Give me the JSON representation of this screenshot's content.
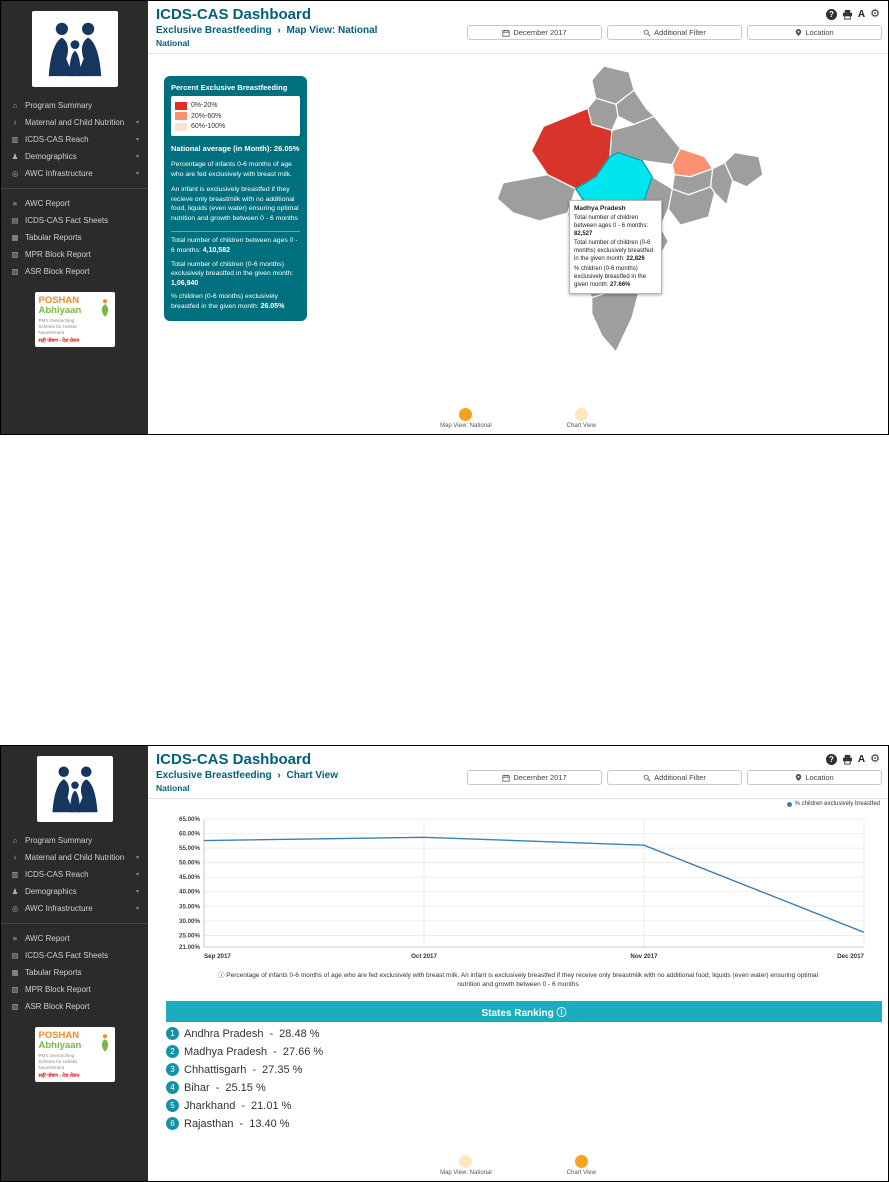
{
  "app": {
    "title": "ICDS-CAS Dashboard"
  },
  "icons": {
    "help": "?",
    "font": "A",
    "gear": "⚙",
    "info": "ⓘ"
  },
  "colors": {
    "teal_heading": "#00617a",
    "legend_box_bg": "#00707e",
    "ranking_header_bg": "#1badbe",
    "rank_circle_bg": "#1791a5",
    "toggle_active": "#f5a31c",
    "toggle_inactive": "#fbe7c0",
    "sidebar_bg": "#2b2b2b",
    "map_default_state": "#9e9e9e"
  },
  "sidebar": {
    "primary": [
      {
        "name": "sidebar-item-program-summary",
        "icon": "home-icon",
        "glyph": "⌂",
        "label": "Program Summary",
        "chevron": ""
      },
      {
        "name": "sidebar-item-maternal-child-nutrition",
        "icon": "mother-child-icon",
        "glyph": "♀",
        "label": "Maternal and Child Nutrition",
        "chevron": "▾"
      },
      {
        "name": "sidebar-item-icds-cas-reach",
        "icon": "reach-chart-icon",
        "glyph": "▥",
        "label": "ICDS-CAS Reach",
        "chevron": "▾"
      },
      {
        "name": "sidebar-item-demographics",
        "icon": "demographics-icon",
        "glyph": "♟",
        "label": "Demographics",
        "chevron": "▾"
      },
      {
        "name": "sidebar-item-awc-infrastructure",
        "icon": "infrastructure-icon",
        "glyph": "◎",
        "label": "AWC Infrastructure",
        "chevron": "▾"
      }
    ],
    "reports": [
      {
        "name": "sidebar-item-awc-report",
        "icon": "report-icon",
        "glyph": "≡",
        "label": "AWC Report",
        "chevron": ""
      },
      {
        "name": "sidebar-item-fact-sheets",
        "icon": "fact-sheet-icon",
        "glyph": "▤",
        "label": "ICDS-CAS Fact Sheets",
        "chevron": ""
      },
      {
        "name": "sidebar-item-tabular-reports",
        "icon": "table-icon",
        "glyph": "▦",
        "label": "Tabular Reports",
        "chevron": ""
      },
      {
        "name": "sidebar-item-mpr-block-report",
        "icon": "mpr-report-icon",
        "glyph": "▨",
        "label": "MPR Block Report",
        "chevron": ""
      },
      {
        "name": "sidebar-item-asr-block-report",
        "icon": "asr-report-icon",
        "glyph": "▧",
        "label": "ASR Block Report",
        "chevron": ""
      }
    ],
    "poshan": {
      "title1": "POSHAN",
      "title2": "Abhiyaan",
      "subtitle": "PM's Overarching Scheme for Holistic Nourishment",
      "tagline": "सही पोषण - देश रोशन"
    }
  },
  "filters": [
    {
      "label": "December 2017"
    },
    {
      "label": "Additional Filter"
    },
    {
      "label": "Location"
    }
  ],
  "map_view": {
    "breadcrumb": {
      "section": "Exclusive Breastfeeding",
      "separator": "›",
      "view": "Map View: National",
      "level": "National"
    },
    "legend_box": {
      "title": "Percent Exclusive Breastfeeding",
      "bins": [
        {
          "color": "#de2d26",
          "label": "0%-20%"
        },
        {
          "color": "#fc9272",
          "label": "20%-60%"
        },
        {
          "color": "#fee0d2",
          "label": "60%-100%"
        }
      ],
      "average": "National average (in Month): 26.05%",
      "desc1": "Percentage of infants 0-6 months of age who are fed exclusively with breast milk.",
      "desc2": "An infant is exclusively breastfed if they recieve only breastmilk with no additional food, liquids (even water) ensuring optimal nutrition and growth between 0 - 6 months",
      "stats": [
        {
          "label": "Total number of children between ages 0 - 6 months: ",
          "value": "4,10,582"
        },
        {
          "label": "Total number of children (0-6 months) exclusively breastfed in the given month: ",
          "value": "1,06,940"
        },
        {
          "label": "% children (0-6 months) exclusively breastfed in the given month: ",
          "value": "26.05%"
        }
      ]
    },
    "tooltip": {
      "title": "Madhya Pradesh",
      "rows": [
        {
          "label": "Total number of children between ages 0 - 6 months: ",
          "value": "82,527"
        },
        {
          "label": "Total number of children (0-6 months) exclusively breastfed in the given month: ",
          "value": "22,826"
        },
        {
          "label": "% children (0-6 months) exclusively breastfed in the given month: ",
          "value": "27.66%"
        }
      ]
    },
    "states": [
      {
        "id": "rajasthan",
        "color": "#d8342a"
      },
      {
        "id": "madhya-pradesh",
        "color": "#00e5ee"
      },
      {
        "id": "bihar",
        "color": "#fc9272"
      }
    ],
    "toggles": [
      {
        "label": "Map View: National",
        "active": true
      },
      {
        "label": "Chart View",
        "active": false
      }
    ]
  },
  "chart_view": {
    "breadcrumb": {
      "section": "Exclusive Breastfeeding",
      "separator": "›",
      "view": "Chart View",
      "level": "National"
    },
    "legend": "% children exclusively breastfed",
    "note": "Percentage of infants 0-6 months of age who are fed exclusively with breast milk. An infant is exclusively breastfed if they receive only breastmilk with no additional food, liquids (even water) ensuring optimal nutrition and growth between 0 - 6 months",
    "ranking": {
      "title": "States Ranking",
      "separator": "-",
      "items": [
        {
          "rank": "1",
          "state": "Andhra Pradesh",
          "value": "28.48 %"
        },
        {
          "rank": "2",
          "state": "Madhya Pradesh",
          "value": "27.66 %"
        },
        {
          "rank": "3",
          "state": "Chhattisgarh",
          "value": "27.35 %"
        },
        {
          "rank": "4",
          "state": "Bihar",
          "value": "25.15 %"
        },
        {
          "rank": "5",
          "state": "Jharkhand",
          "value": "21.01 %"
        },
        {
          "rank": "6",
          "state": "Rajasthan",
          "value": "13.40 %"
        }
      ]
    },
    "toggles": [
      {
        "label": "Map View: National",
        "active": false
      },
      {
        "label": "Chart View",
        "active": true
      }
    ]
  },
  "chart_data": {
    "type": "line",
    "title": "",
    "xlabel": "",
    "ylabel": "% children exclusively breastfed",
    "x": [
      "Sep 2017",
      "Oct 2017",
      "Nov 2017",
      "Dec 2017"
    ],
    "series": [
      {
        "name": "% children exclusively breastfed",
        "color": "#3c7fb5",
        "values": [
          57.6,
          58.7,
          56.0,
          26.05
        ]
      }
    ],
    "ylim": [
      21,
      65
    ],
    "yticks": [
      65,
      60,
      55,
      50,
      45,
      40,
      35,
      30,
      25,
      21
    ],
    "grid": true,
    "legend_position": "top-right"
  }
}
